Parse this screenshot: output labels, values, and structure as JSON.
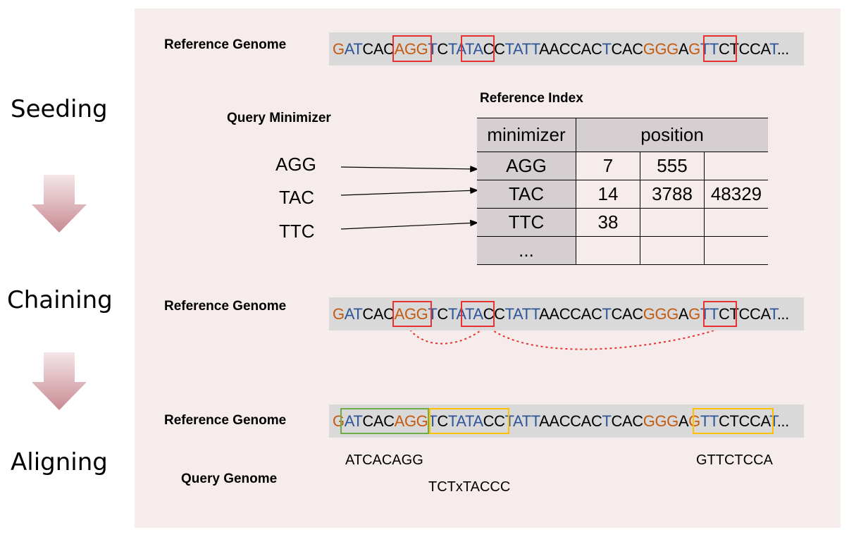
{
  "stages": [
    "Seeding",
    "Chaining",
    "Aligning"
  ],
  "labels": {
    "reference_genome": "Reference Genome",
    "query_minimizer": "Query Minimizer",
    "reference_index": "Reference Index",
    "query_genome": "Query Genome"
  },
  "sequence": [
    {
      "t": "G",
      "c": "#c55a11"
    },
    {
      "t": "A",
      "c": "#2e5597"
    },
    {
      "t": "T",
      "c": "#2e5597"
    },
    {
      "t": "CAC",
      "c": "#000000"
    },
    {
      "t": "AGG",
      "c": "#c55a11"
    },
    {
      "t": "T",
      "c": "#2e5597"
    },
    {
      "t": "C",
      "c": "#000000"
    },
    {
      "t": "TATA",
      "c": "#2e5597"
    },
    {
      "t": "CC",
      "c": "#000000"
    },
    {
      "t": "TATT",
      "c": "#2e5597"
    },
    {
      "t": "AACCAC",
      "c": "#000000"
    },
    {
      "t": "T",
      "c": "#2e5597"
    },
    {
      "t": "CAC",
      "c": "#000000"
    },
    {
      "t": "GGG",
      "c": "#c55a11"
    },
    {
      "t": "A",
      "c": "#000000"
    },
    {
      "t": "G",
      "c": "#c55a11"
    },
    {
      "t": "TT",
      "c": "#2e5597"
    },
    {
      "t": "CTCCA",
      "c": "#000000"
    },
    {
      "t": "T",
      "c": "#2e5597"
    },
    {
      "t": "...",
      "c": "#000000"
    }
  ],
  "query_minimizers": [
    "AGG",
    "TAC",
    "TTC"
  ],
  "index": {
    "headers": {
      "key": "minimizer",
      "positions": "position"
    },
    "rows": [
      {
        "key": "AGG",
        "positions": [
          "7",
          "555",
          ""
        ]
      },
      {
        "key": "TAC",
        "positions": [
          "14",
          "3788",
          "48329"
        ]
      },
      {
        "key": "TTC",
        "positions": [
          "38",
          "",
          ""
        ]
      },
      {
        "key": "...",
        "positions": [
          "",
          "",
          ""
        ]
      }
    ]
  },
  "query_genome": {
    "segment1": "ATCACAGG",
    "segment2": "TCTxTACCC",
    "segment3": "GTTCTCCA"
  },
  "colors": {
    "seed_box": "#e8302e",
    "chain_line": "#e8302e",
    "align_box_1": "#70ad47",
    "align_box_2": "#ffc000",
    "panel": "#f6ecec",
    "sequence_bar": "#d9d9d9"
  }
}
